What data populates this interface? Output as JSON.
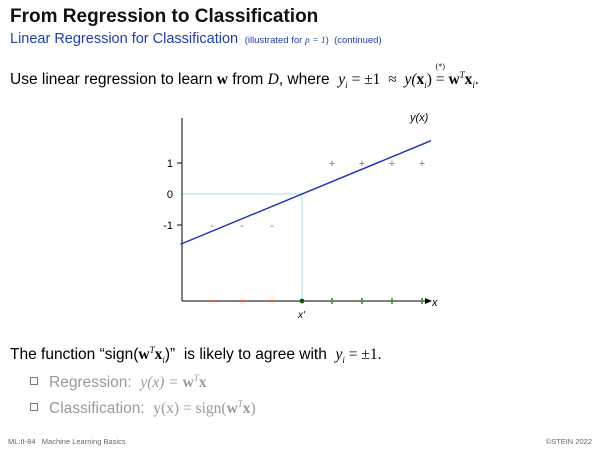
{
  "slide": {
    "title": "From Regression to Classification",
    "subtitle_main": "Linear Regression for Classification",
    "subtitle_note": "(illustrated for",
    "subtitle_note_math": "p = 1",
    "subtitle_note_close": ")",
    "subtitle_continued": "(continued)"
  },
  "statement1": {
    "prefix": "Use linear regression to learn",
    "w": "w",
    "from": "from",
    "D": "D",
    "where": ", where",
    "yi": "y",
    "i_sub": "i",
    "eq_pm1": " = ±1",
    "approx": "≈",
    "yx": "y(",
    "x": "x",
    "close": ")",
    "star": "(*)",
    "eq": "=",
    "wT": "w",
    "T": "T",
    "xi": "x",
    "end": "."
  },
  "chart_data": {
    "type": "scatter",
    "xlabel": "x",
    "ylabel": "y(x)",
    "y_ticks": [
      "1",
      "0",
      "-1"
    ],
    "threshold_label": "x'",
    "negative_marker": "-",
    "positive_marker": "+",
    "negative_points": [
      {
        "x": 1,
        "y": -1
      },
      {
        "x": 2,
        "y": -1
      },
      {
        "x": 3,
        "y": -1
      }
    ],
    "positive_points": [
      {
        "x": 5,
        "y": 1
      },
      {
        "x": 6,
        "y": 1
      },
      {
        "x": 7,
        "y": 1
      },
      {
        "x": 8,
        "y": 1
      }
    ],
    "regression_line": {
      "slope": 0.4,
      "intercept": -1.6
    },
    "threshold_x": 4,
    "colors": {
      "line": "#1a2fbf",
      "guide": "#9fe3e8",
      "negative": "#e8641e",
      "positive": "#2a9a2a",
      "point_symbol": "#777777",
      "axis": "#000000"
    }
  },
  "statement2": {
    "prefix": "The function “sign(",
    "w": "w",
    "T": "T",
    "x": "x",
    "i": "i",
    "close": ")”",
    "middle": "is likely to agree with",
    "yi": "y",
    "eq": " = ±1."
  },
  "bullets": [
    {
      "label": "Regression:",
      "formula_left": "y(x) = ",
      "w": "w",
      "T": "T",
      "x": "x"
    },
    {
      "label": "Classification:",
      "formula_left": "y(x) = sign(",
      "w": "w",
      "T": "T",
      "x": "x",
      "close": ")"
    }
  ],
  "footer": {
    "left_code": "ML:II-84",
    "left_text": "Machine Learning Basics",
    "right": "©STEIN 2022"
  }
}
